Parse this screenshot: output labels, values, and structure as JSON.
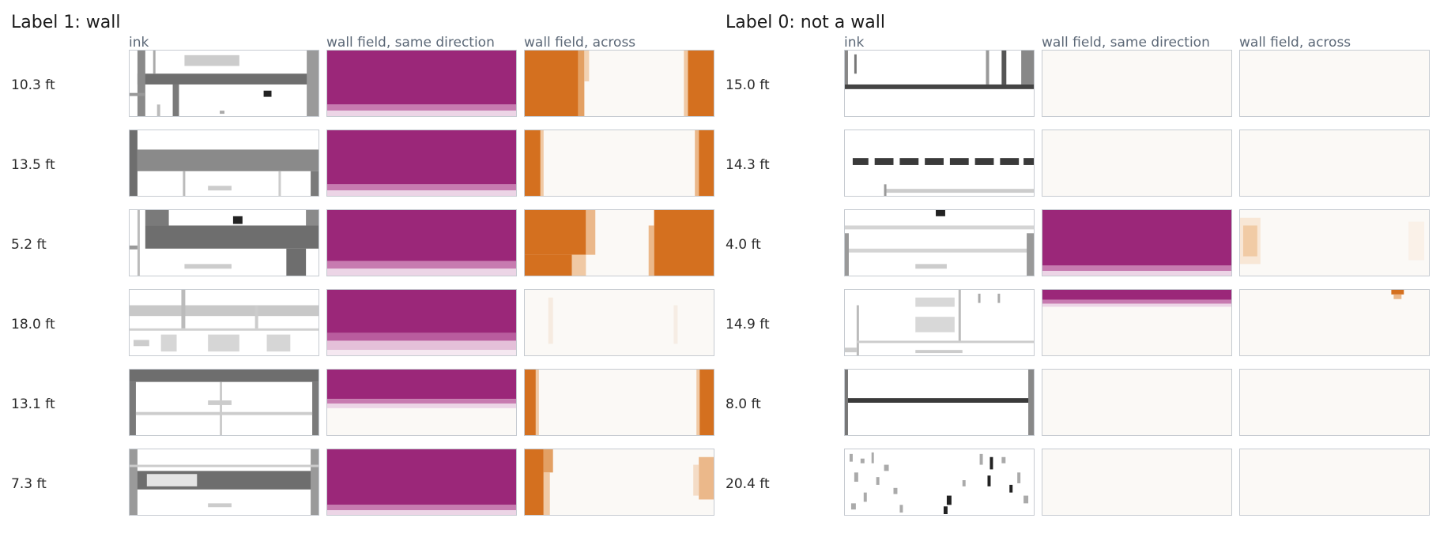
{
  "panels": [
    {
      "title": "Label 1: wall",
      "columns": [
        "ink",
        "wall field, same direction",
        "wall field, across"
      ],
      "rows": [
        {
          "label": "10.3 ft"
        },
        {
          "label": "13.5 ft"
        },
        {
          "label": "5.2 ft"
        },
        {
          "label": "18.0 ft"
        },
        {
          "label": "13.1 ft"
        },
        {
          "label": "7.3 ft"
        }
      ]
    },
    {
      "title": "Label 0: not a wall",
      "columns": [
        "ink",
        "wall field, same direction",
        "wall field, across"
      ],
      "rows": [
        {
          "label": "15.0 ft"
        },
        {
          "label": "14.3 ft"
        },
        {
          "label": "4.0 ft"
        },
        {
          "label": "14.9 ft"
        },
        {
          "label": "8.0 ft"
        },
        {
          "label": "20.4 ft"
        }
      ]
    }
  ],
  "colors": {
    "same_direction_field": "#9b2779",
    "across_field": "#d4701f",
    "ink": "#6e6e6e",
    "tile_background": "#fbf9f6",
    "tile_border": "#c6cbd1"
  }
}
